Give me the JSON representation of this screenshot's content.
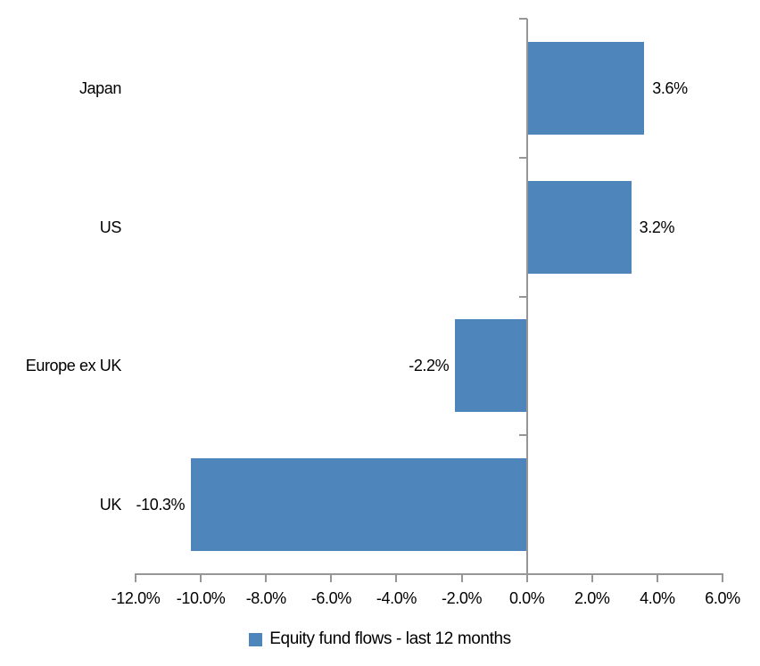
{
  "chart_data": {
    "type": "bar",
    "orientation": "horizontal",
    "title": "",
    "categories": [
      "Japan",
      "US",
      "Europe ex UK",
      "UK"
    ],
    "values": [
      3.6,
      3.2,
      -2.2,
      -10.3
    ],
    "data_labels": [
      "3.6%",
      "3.2%",
      "-2.2%",
      "-10.3%"
    ],
    "series_name": "Equity fund flows - last 12 months",
    "xlim": [
      -12,
      6
    ],
    "x_ticks": [
      -12,
      -10,
      -8,
      -6,
      -4,
      -2,
      0,
      2,
      4,
      6
    ],
    "x_tick_labels": [
      "-12.0%",
      "-10.0%",
      "-8.0%",
      "-6.0%",
      "-4.0%",
      "-2.0%",
      "0.0%",
      "2.0%",
      "4.0%",
      "6.0%"
    ],
    "grid": "off",
    "legend_position": "bottom",
    "legend": "Equity fund flows - last 12 months",
    "bar_color": "#4E86BC",
    "axis_color": "#969696",
    "text_color": "#000000",
    "background_color": "#FFFFFF"
  }
}
